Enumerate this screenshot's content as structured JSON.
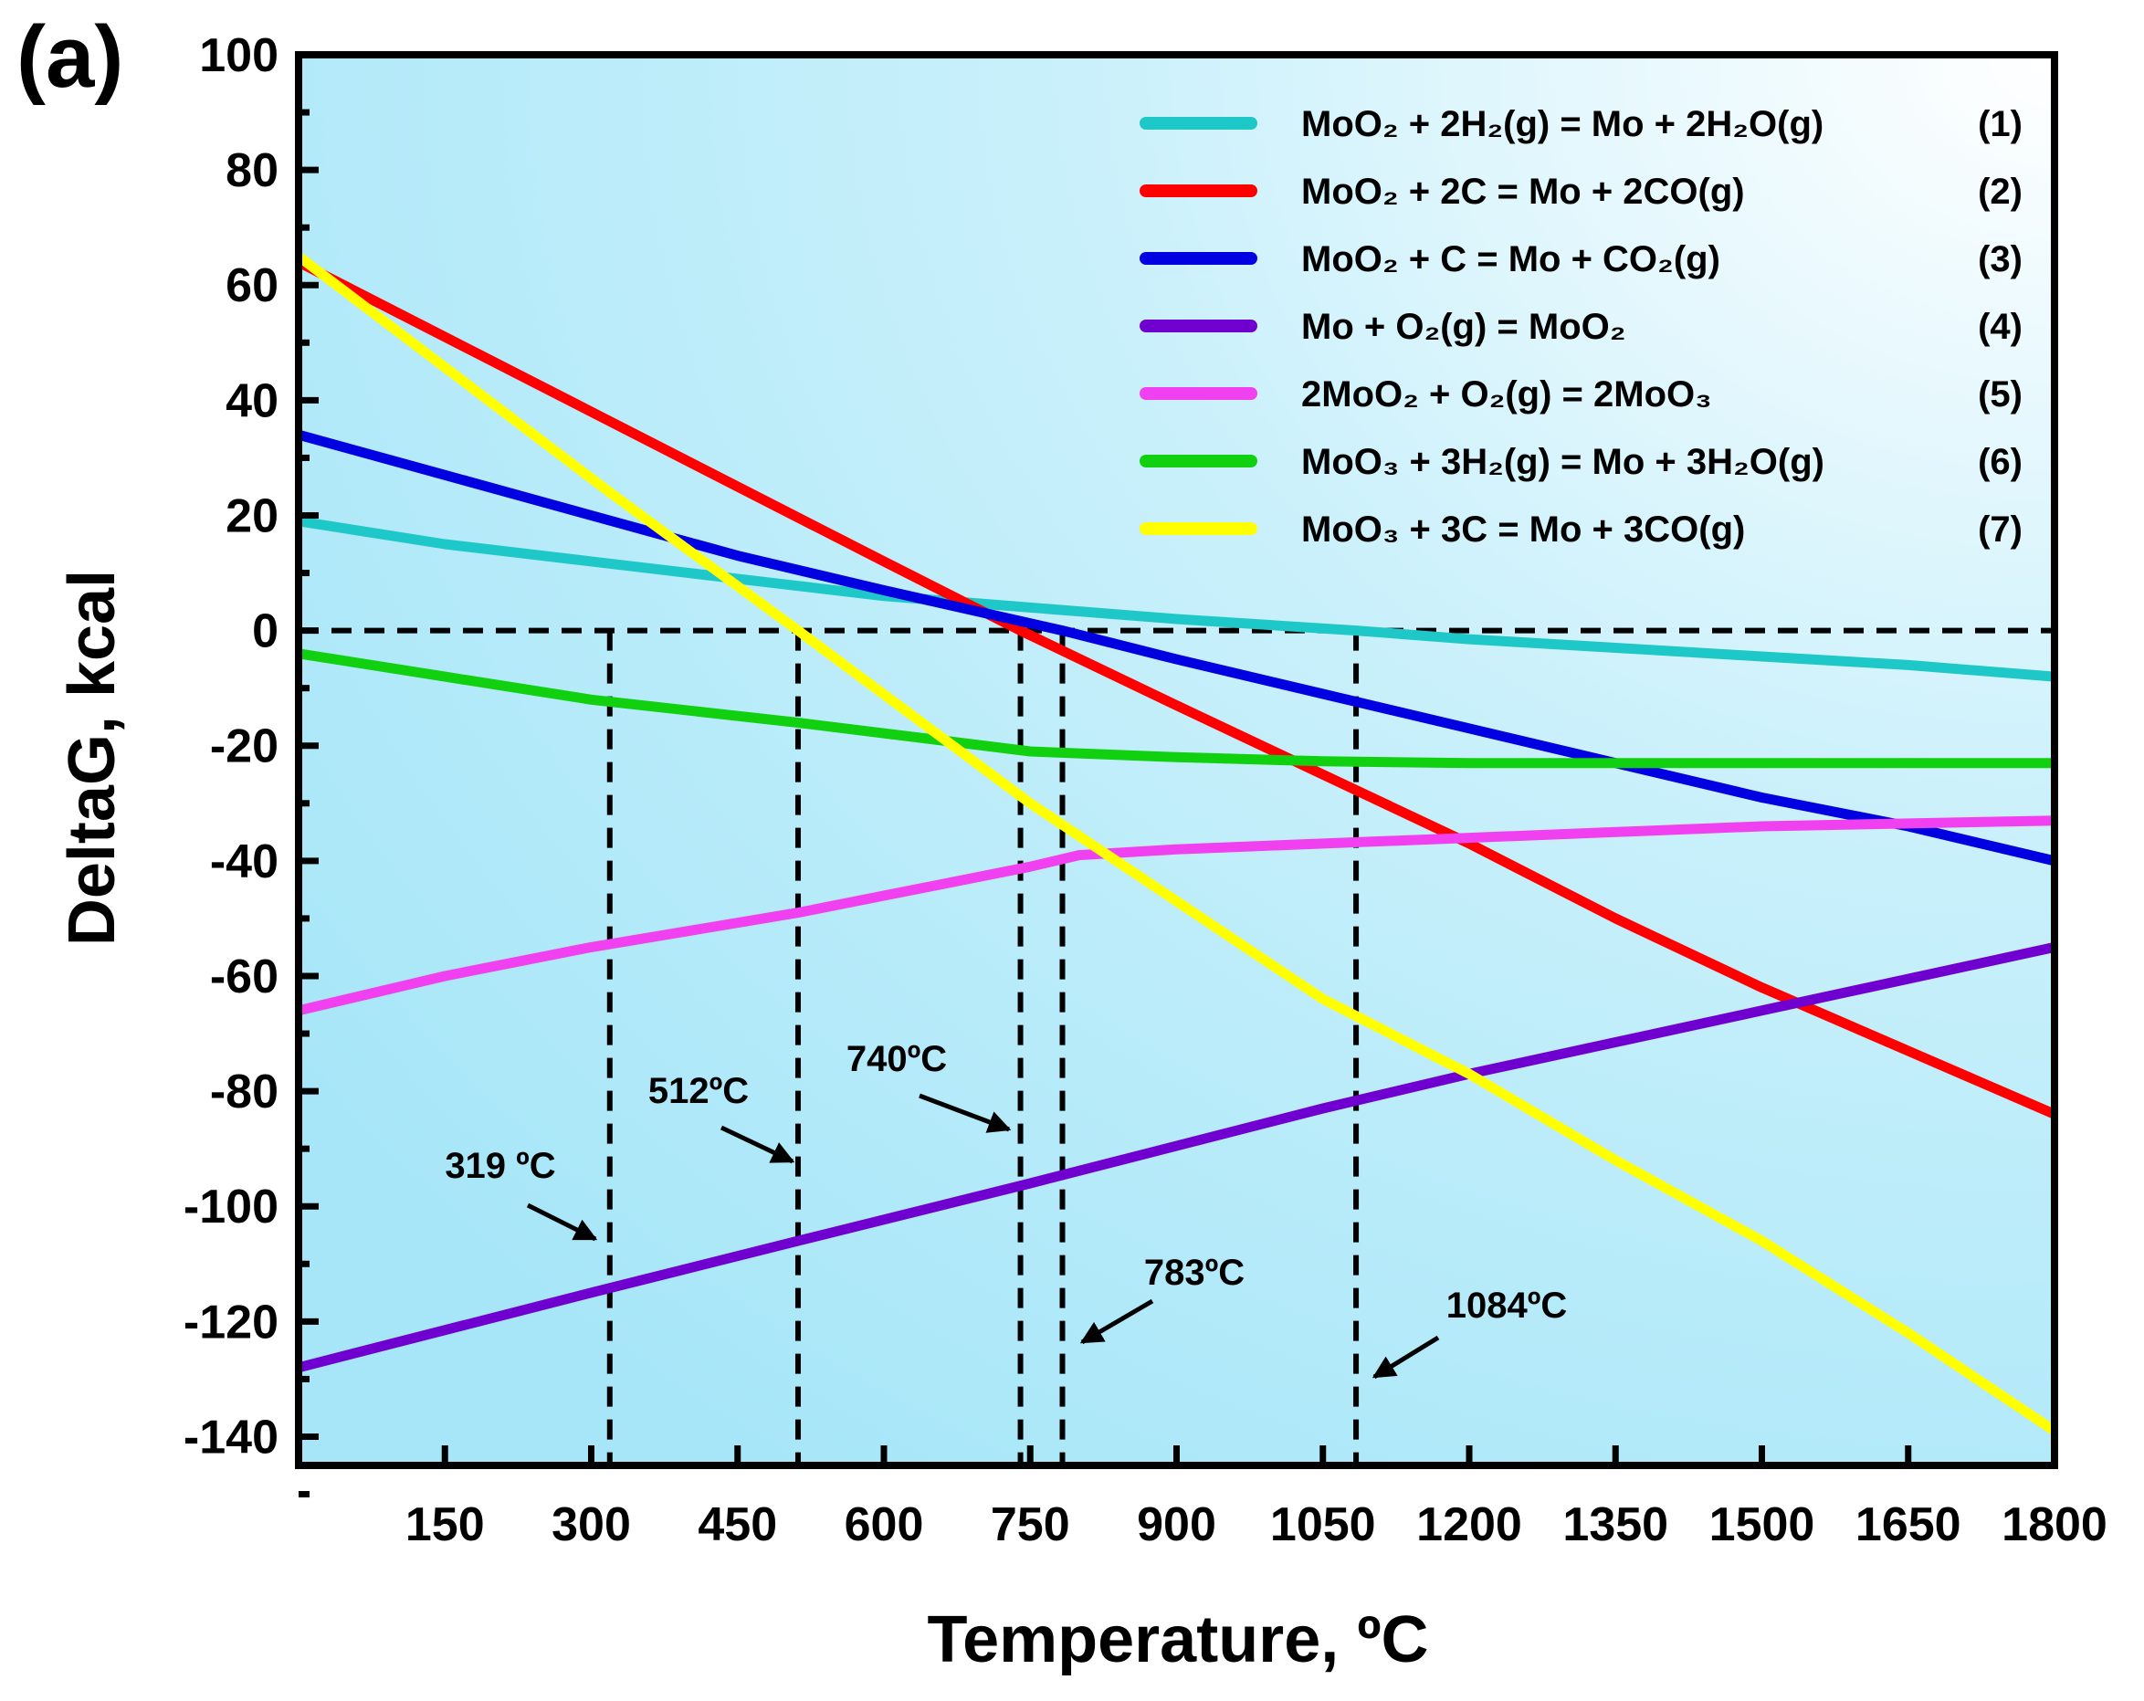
{
  "panel_label": "(a)",
  "chart_data": {
    "type": "line",
    "xlabel": "Temperature, ºC",
    "ylabel": "DeltaG, kcal",
    "xlim": [
      0,
      1800
    ],
    "ylim": [
      -145,
      100
    ],
    "xticks": [
      150,
      300,
      450,
      600,
      750,
      900,
      1050,
      1200,
      1350,
      1500,
      1650,
      1800
    ],
    "yticks": [
      100,
      80,
      60,
      40,
      20,
      0,
      -20,
      -40,
      -60,
      -80,
      -100,
      -120,
      -140
    ],
    "grid": false,
    "legend_position": "top-right",
    "background": "light blue gradient",
    "reference_line": {
      "y": 0,
      "style": "dashed",
      "color": "#000000"
    },
    "series": [
      {
        "name": "MoO₂ + 2H₂(g) = Mo + 2H₂O(g)",
        "id": "(1)",
        "color": "#1fc8c8",
        "x": [
          0,
          150,
          300,
          450,
          600,
          750,
          900,
          1084,
          1200,
          1350,
          1500,
          1650,
          1800
        ],
        "y": [
          19,
          15,
          12,
          9,
          6,
          4,
          2,
          0,
          -1.5,
          -3,
          -4.5,
          -6,
          -8
        ]
      },
      {
        "name": "MoO₂ + 2C = Mo + 2CO(g)",
        "id": "(2)",
        "color": "#ff0000",
        "x": [
          0,
          300,
          600,
          740,
          900,
          1050,
          1200,
          1350,
          1500,
          1650,
          1800
        ],
        "y": [
          64,
          38,
          12,
          0,
          -13,
          -25,
          -37,
          -50,
          -62,
          -73,
          -84
        ]
      },
      {
        "name": "MoO₂ + C = Mo + CO₂(g)",
        "id": "(3)",
        "color": "#0000e0",
        "x": [
          0,
          150,
          300,
          450,
          600,
          783,
          900,
          1050,
          1200,
          1350,
          1500,
          1650,
          1800
        ],
        "y": [
          34,
          27,
          20,
          13,
          7,
          0,
          -5,
          -11,
          -17,
          -23,
          -29,
          -34,
          -40
        ]
      },
      {
        "name": "Mo + O₂(g) = MoO₂",
        "id": "(4)",
        "color": "#7000d0",
        "x": [
          0,
          300,
          512,
          750,
          1050,
          1200,
          1500,
          1800
        ],
        "y": [
          -128,
          -115,
          -106,
          -96,
          -83,
          -77,
          -66,
          -55
        ]
      },
      {
        "name": "2MoO₂ + O₂(g) = 2MoO₃",
        "id": "(5)",
        "color": "#f040f0",
        "x": [
          0,
          150,
          300,
          512,
          750,
          800,
          900,
          1050,
          1200,
          1500,
          1800
        ],
        "y": [
          -66,
          -60,
          -55,
          -49,
          -41,
          -39,
          -38,
          -37,
          -36,
          -34,
          -33
        ]
      },
      {
        "name": "MoO₃ + 3H₂(g) = Mo + 3H₂O(g)",
        "id": "(6)",
        "color": "#10d010",
        "x": [
          0,
          150,
          300,
          512,
          750,
          900,
          1050,
          1200,
          1500,
          1800
        ],
        "y": [
          -4,
          -8,
          -12,
          -16,
          -21,
          -22,
          -22.7,
          -23,
          -23,
          -23
        ]
      },
      {
        "name": "MoO₃ + 3C = Mo + 3CO(g)",
        "id": "(7)",
        "color": "#ffff00",
        "x": [
          0,
          319,
          512,
          750,
          900,
          1050,
          1200,
          1350,
          1500,
          1650,
          1800
        ],
        "y": [
          65,
          24,
          0,
          -30,
          -47,
          -64,
          -77,
          -92,
          -106,
          -122,
          -139
        ]
      }
    ],
    "annotations": [
      {
        "text": "319 ºC",
        "x": 319
      },
      {
        "text": "512ºC",
        "x": 512
      },
      {
        "text": "740ºC",
        "x": 740
      },
      {
        "text": "783ºC",
        "x": 783
      },
      {
        "text": "1084ºC",
        "x": 1084
      }
    ]
  }
}
